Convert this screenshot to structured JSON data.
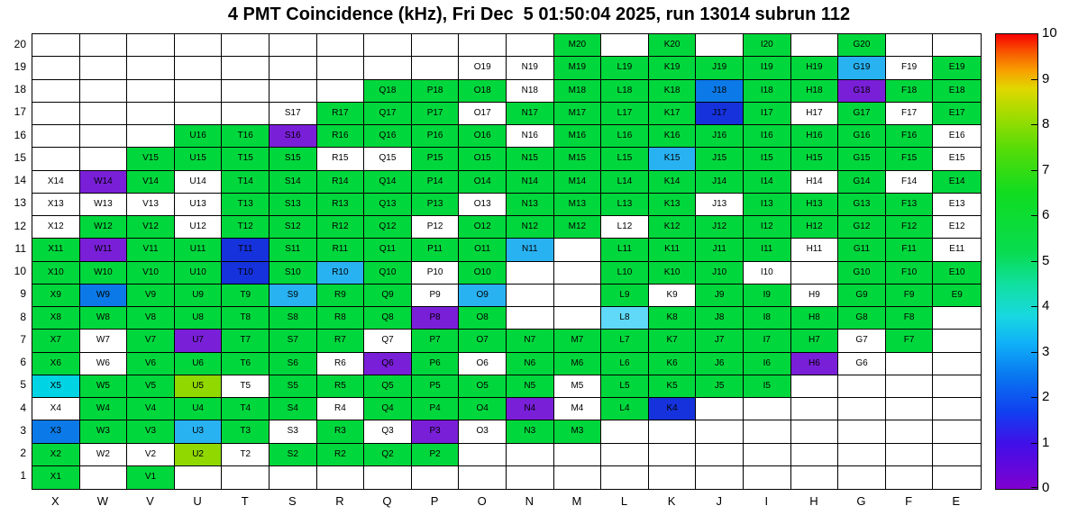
{
  "chart_data": {
    "type": "heatmap",
    "title": "4 PMT Coincidence (kHz), Fri Dec  5 01:50:04 2025, run 13014 subrun 112",
    "xlabel": "",
    "ylabel": "",
    "legend_position": "right",
    "columns": [
      "X",
      "W",
      "V",
      "U",
      "T",
      "S",
      "R",
      "Q",
      "P",
      "O",
      "N",
      "M",
      "L",
      "K",
      "J",
      "I",
      "H",
      "G",
      "F",
      "E"
    ],
    "rows": [
      1,
      2,
      3,
      4,
      5,
      6,
      7,
      8,
      9,
      10,
      11,
      12,
      13,
      14,
      15,
      16,
      17,
      18,
      19,
      20
    ],
    "palette": {
      "g": {
        "name": "green",
        "hex": "#00d73c",
        "approx_value": 5.5
      },
      "yg": {
        "name": "yellow-green",
        "hex": "#90d800",
        "approx_value": 7.5
      },
      "cy": {
        "name": "cyan",
        "hex": "#00d4e4",
        "approx_value": 3.0
      },
      "lc": {
        "name": "light-cyan",
        "hex": "#5fd9f7",
        "approx_value": 3.3
      },
      "lb": {
        "name": "light-blue",
        "hex": "#29b2f2",
        "approx_value": 2.6
      },
      "b": {
        "name": "blue",
        "hex": "#0b7ae8",
        "approx_value": 2.2
      },
      "db": {
        "name": "dark-blue",
        "hex": "#1532dc",
        "approx_value": 1.4
      },
      "pu": {
        "name": "purple",
        "hex": "#7a1fd8",
        "approx_value": 0.6
      },
      "w": {
        "name": "white-no-rate",
        "hex": "#ffffff",
        "approx_value": null
      }
    },
    "cells": {
      "1": [
        [
          "X",
          "g"
        ],
        [
          "V",
          "g"
        ]
      ],
      "2": [
        [
          "X",
          "g"
        ],
        [
          "W",
          "w"
        ],
        [
          "V",
          "w"
        ],
        [
          "U",
          "yg"
        ],
        [
          "T",
          "w"
        ],
        [
          "S",
          "g"
        ],
        [
          "R",
          "g"
        ],
        [
          "Q",
          "g"
        ],
        [
          "P",
          "g"
        ]
      ],
      "3": [
        [
          "X",
          "b"
        ],
        [
          "W",
          "g"
        ],
        [
          "V",
          "g"
        ],
        [
          "U",
          "lb"
        ],
        [
          "T",
          "g"
        ],
        [
          "S",
          "w"
        ],
        [
          "R",
          "g"
        ],
        [
          "Q",
          "w"
        ],
        [
          "P",
          "pu"
        ],
        [
          "O",
          "w"
        ],
        [
          "N",
          "g"
        ],
        [
          "M",
          "g"
        ]
      ],
      "4": [
        [
          "X",
          "w"
        ],
        [
          "W",
          "g"
        ],
        [
          "V",
          "g"
        ],
        [
          "U",
          "g"
        ],
        [
          "T",
          "g"
        ],
        [
          "S",
          "g"
        ],
        [
          "R",
          "w"
        ],
        [
          "Q",
          "g"
        ],
        [
          "P",
          "g"
        ],
        [
          "O",
          "g"
        ],
        [
          "N",
          "pu"
        ],
        [
          "M",
          "w"
        ],
        [
          "L",
          "g"
        ],
        [
          "K",
          "db"
        ]
      ],
      "5": [
        [
          "X",
          "cy"
        ],
        [
          "W",
          "g"
        ],
        [
          "V",
          "g"
        ],
        [
          "U",
          "yg"
        ],
        [
          "T",
          "w"
        ],
        [
          "S",
          "g"
        ],
        [
          "R",
          "g"
        ],
        [
          "Q",
          "g"
        ],
        [
          "P",
          "g"
        ],
        [
          "O",
          "g"
        ],
        [
          "N",
          "g"
        ],
        [
          "M",
          "w"
        ],
        [
          "L",
          "g"
        ],
        [
          "K",
          "g"
        ],
        [
          "J",
          "g"
        ],
        [
          "I",
          "g"
        ]
      ],
      "6": [
        [
          "X",
          "g"
        ],
        [
          "W",
          "w"
        ],
        [
          "V",
          "g"
        ],
        [
          "U",
          "g"
        ],
        [
          "T",
          "g"
        ],
        [
          "S",
          "g"
        ],
        [
          "R",
          "w"
        ],
        [
          "Q",
          "pu"
        ],
        [
          "P",
          "g"
        ],
        [
          "O",
          "w"
        ],
        [
          "N",
          "g"
        ],
        [
          "M",
          "g"
        ],
        [
          "L",
          "g"
        ],
        [
          "K",
          "g"
        ],
        [
          "J",
          "g"
        ],
        [
          "I",
          "g"
        ],
        [
          "H",
          "pu"
        ],
        [
          "G",
          "w"
        ]
      ],
      "7": [
        [
          "X",
          "g"
        ],
        [
          "W",
          "w"
        ],
        [
          "V",
          "g"
        ],
        [
          "U",
          "pu"
        ],
        [
          "T",
          "g"
        ],
        [
          "S",
          "g"
        ],
        [
          "R",
          "g"
        ],
        [
          "Q",
          "w"
        ],
        [
          "P",
          "g"
        ],
        [
          "O",
          "g"
        ],
        [
          "N",
          "g"
        ],
        [
          "M",
          "g"
        ],
        [
          "L",
          "g"
        ],
        [
          "K",
          "g"
        ],
        [
          "J",
          "g"
        ],
        [
          "I",
          "g"
        ],
        [
          "H",
          "g"
        ],
        [
          "G",
          "w"
        ],
        [
          "F",
          "g"
        ]
      ],
      "8": [
        [
          "X",
          "g"
        ],
        [
          "W",
          "g"
        ],
        [
          "V",
          "g"
        ],
        [
          "U",
          "g"
        ],
        [
          "T",
          "g"
        ],
        [
          "S",
          "g"
        ],
        [
          "R",
          "g"
        ],
        [
          "Q",
          "g"
        ],
        [
          "P",
          "pu"
        ],
        [
          "O",
          "g"
        ],
        [
          "L",
          "lc"
        ],
        [
          "K",
          "g"
        ],
        [
          "J",
          "g"
        ],
        [
          "I",
          "g"
        ],
        [
          "H",
          "g"
        ],
        [
          "G",
          "g"
        ],
        [
          "F",
          "g"
        ]
      ],
      "9": [
        [
          "X",
          "g"
        ],
        [
          "W",
          "b"
        ],
        [
          "V",
          "g"
        ],
        [
          "U",
          "g"
        ],
        [
          "T",
          "g"
        ],
        [
          "S",
          "lb"
        ],
        [
          "R",
          "g"
        ],
        [
          "Q",
          "g"
        ],
        [
          "P",
          "w"
        ],
        [
          "O",
          "lb"
        ],
        [
          "L",
          "g"
        ],
        [
          "K",
          "w"
        ],
        [
          "J",
          "g"
        ],
        [
          "I",
          "g"
        ],
        [
          "H",
          "w"
        ],
        [
          "G",
          "g"
        ],
        [
          "F",
          "g"
        ],
        [
          "E",
          "g"
        ]
      ],
      "10": [
        [
          "X",
          "g"
        ],
        [
          "W",
          "g"
        ],
        [
          "V",
          "g"
        ],
        [
          "U",
          "g"
        ],
        [
          "T",
          "db"
        ],
        [
          "S",
          "g"
        ],
        [
          "R",
          "lb"
        ],
        [
          "Q",
          "g"
        ],
        [
          "P",
          "w"
        ],
        [
          "O",
          "g"
        ],
        [
          "L",
          "g"
        ],
        [
          "K",
          "g"
        ],
        [
          "J",
          "g"
        ],
        [
          "I",
          "w"
        ],
        [
          "G",
          "g"
        ],
        [
          "F",
          "g"
        ],
        [
          "E",
          "g"
        ]
      ],
      "11": [
        [
          "X",
          "g"
        ],
        [
          "W",
          "pu"
        ],
        [
          "V",
          "g"
        ],
        [
          "U",
          "g"
        ],
        [
          "T",
          "db"
        ],
        [
          "S",
          "g"
        ],
        [
          "R",
          "g"
        ],
        [
          "Q",
          "g"
        ],
        [
          "P",
          "g"
        ],
        [
          "O",
          "g"
        ],
        [
          "N",
          "lb"
        ],
        [
          "L",
          "g"
        ],
        [
          "K",
          "g"
        ],
        [
          "J",
          "g"
        ],
        [
          "I",
          "g"
        ],
        [
          "H",
          "w"
        ],
        [
          "G",
          "g"
        ],
        [
          "F",
          "g"
        ],
        [
          "E",
          "w"
        ]
      ],
      "12": [
        [
          "X",
          "w"
        ],
        [
          "W",
          "g"
        ],
        [
          "V",
          "g"
        ],
        [
          "U",
          "w"
        ],
        [
          "T",
          "g"
        ],
        [
          "S",
          "g"
        ],
        [
          "R",
          "g"
        ],
        [
          "Q",
          "g"
        ],
        [
          "P",
          "w"
        ],
        [
          "O",
          "g"
        ],
        [
          "N",
          "g"
        ],
        [
          "M",
          "g"
        ],
        [
          "L",
          "w"
        ],
        [
          "K",
          "g"
        ],
        [
          "J",
          "g"
        ],
        [
          "I",
          "g"
        ],
        [
          "H",
          "g"
        ],
        [
          "G",
          "g"
        ],
        [
          "F",
          "g"
        ],
        [
          "E",
          "w"
        ]
      ],
      "13": [
        [
          "X",
          "w"
        ],
        [
          "W",
          "w"
        ],
        [
          "V",
          "w"
        ],
        [
          "U",
          "w"
        ],
        [
          "T",
          "g"
        ],
        [
          "S",
          "g"
        ],
        [
          "R",
          "g"
        ],
        [
          "Q",
          "g"
        ],
        [
          "P",
          "g"
        ],
        [
          "O",
          "w"
        ],
        [
          "N",
          "g"
        ],
        [
          "M",
          "g"
        ],
        [
          "L",
          "g"
        ],
        [
          "K",
          "g"
        ],
        [
          "J",
          "w"
        ],
        [
          "I",
          "g"
        ],
        [
          "H",
          "g"
        ],
        [
          "G",
          "g"
        ],
        [
          "F",
          "g"
        ],
        [
          "E",
          "w"
        ]
      ],
      "14": [
        [
          "X",
          "w"
        ],
        [
          "W",
          "pu"
        ],
        [
          "V",
          "g"
        ],
        [
          "U",
          "w"
        ],
        [
          "T",
          "g"
        ],
        [
          "S",
          "g"
        ],
        [
          "R",
          "g"
        ],
        [
          "Q",
          "g"
        ],
        [
          "P",
          "g"
        ],
        [
          "O",
          "g"
        ],
        [
          "N",
          "g"
        ],
        [
          "M",
          "g"
        ],
        [
          "L",
          "g"
        ],
        [
          "K",
          "g"
        ],
        [
          "J",
          "g"
        ],
        [
          "I",
          "g"
        ],
        [
          "H",
          "w"
        ],
        [
          "G",
          "g"
        ],
        [
          "F",
          "w"
        ],
        [
          "E",
          "g"
        ]
      ],
      "15": [
        [
          "V",
          "g"
        ],
        [
          "U",
          "g"
        ],
        [
          "T",
          "g"
        ],
        [
          "S",
          "g"
        ],
        [
          "R",
          "w"
        ],
        [
          "Q",
          "w"
        ],
        [
          "P",
          "g"
        ],
        [
          "O",
          "g"
        ],
        [
          "N",
          "g"
        ],
        [
          "M",
          "g"
        ],
        [
          "L",
          "g"
        ],
        [
          "K",
          "lb"
        ],
        [
          "J",
          "g"
        ],
        [
          "I",
          "g"
        ],
        [
          "H",
          "g"
        ],
        [
          "G",
          "g"
        ],
        [
          "F",
          "g"
        ],
        [
          "E",
          "w"
        ]
      ],
      "16": [
        [
          "U",
          "g"
        ],
        [
          "T",
          "g"
        ],
        [
          "S",
          "pu"
        ],
        [
          "R",
          "g"
        ],
        [
          "Q",
          "g"
        ],
        [
          "P",
          "g"
        ],
        [
          "O",
          "g"
        ],
        [
          "N",
          "w"
        ],
        [
          "M",
          "g"
        ],
        [
          "L",
          "g"
        ],
        [
          "K",
          "g"
        ],
        [
          "J",
          "g"
        ],
        [
          "I",
          "g"
        ],
        [
          "H",
          "g"
        ],
        [
          "G",
          "g"
        ],
        [
          "F",
          "g"
        ],
        [
          "E",
          "w"
        ]
      ],
      "17": [
        [
          "S",
          "w"
        ],
        [
          "R",
          "g"
        ],
        [
          "Q",
          "g"
        ],
        [
          "P",
          "g"
        ],
        [
          "O",
          "w"
        ],
        [
          "N",
          "g"
        ],
        [
          "M",
          "g"
        ],
        [
          "L",
          "g"
        ],
        [
          "K",
          "g"
        ],
        [
          "J",
          "db"
        ],
        [
          "I",
          "g"
        ],
        [
          "H",
          "w"
        ],
        [
          "G",
          "g"
        ],
        [
          "F",
          "w"
        ],
        [
          "E",
          "g"
        ]
      ],
      "18": [
        [
          "Q",
          "g"
        ],
        [
          "P",
          "g"
        ],
        [
          "O",
          "g"
        ],
        [
          "N",
          "w"
        ],
        [
          "M",
          "g"
        ],
        [
          "L",
          "g"
        ],
        [
          "K",
          "g"
        ],
        [
          "J",
          "b"
        ],
        [
          "I",
          "g"
        ],
        [
          "H",
          "g"
        ],
        [
          "G",
          "pu"
        ],
        [
          "F",
          "g"
        ],
        [
          "E",
          "g"
        ]
      ],
      "19": [
        [
          "O",
          "w"
        ],
        [
          "N",
          "w"
        ],
        [
          "M",
          "g"
        ],
        [
          "L",
          "g"
        ],
        [
          "K",
          "g"
        ],
        [
          "J",
          "g"
        ],
        [
          "I",
          "g"
        ],
        [
          "H",
          "g"
        ],
        [
          "G",
          "lb"
        ],
        [
          "F",
          "w"
        ],
        [
          "E",
          "g"
        ]
      ],
      "20": [
        [
          "M",
          "g"
        ],
        [
          "K",
          "g"
        ],
        [
          "I",
          "g"
        ],
        [
          "G",
          "g"
        ]
      ]
    },
    "colorbar": {
      "min": 0,
      "max": 10,
      "ticks": [
        "0",
        "1",
        "2",
        "3",
        "4",
        "5",
        "6",
        "7",
        "8",
        "9",
        "10"
      ],
      "gradient_stops": [
        {
          "p": 0.0,
          "hex": "#8000d0"
        },
        {
          "p": 0.1,
          "hex": "#4010e8"
        },
        {
          "p": 0.17,
          "hex": "#1040f0"
        },
        {
          "p": 0.25,
          "hex": "#0878f0"
        },
        {
          "p": 0.32,
          "hex": "#10b0f8"
        },
        {
          "p": 0.38,
          "hex": "#18d8e0"
        },
        {
          "p": 0.45,
          "hex": "#10e0a0"
        },
        {
          "p": 0.52,
          "hex": "#08dc50"
        },
        {
          "p": 0.65,
          "hex": "#10dc20"
        },
        {
          "p": 0.75,
          "hex": "#58dc08"
        },
        {
          "p": 0.82,
          "hex": "#a0dc00"
        },
        {
          "p": 0.88,
          "hex": "#e0d800"
        },
        {
          "p": 0.92,
          "hex": "#f8a000"
        },
        {
          "p": 0.96,
          "hex": "#f85800"
        },
        {
          "p": 1.0,
          "hex": "#f80000"
        }
      ]
    }
  }
}
